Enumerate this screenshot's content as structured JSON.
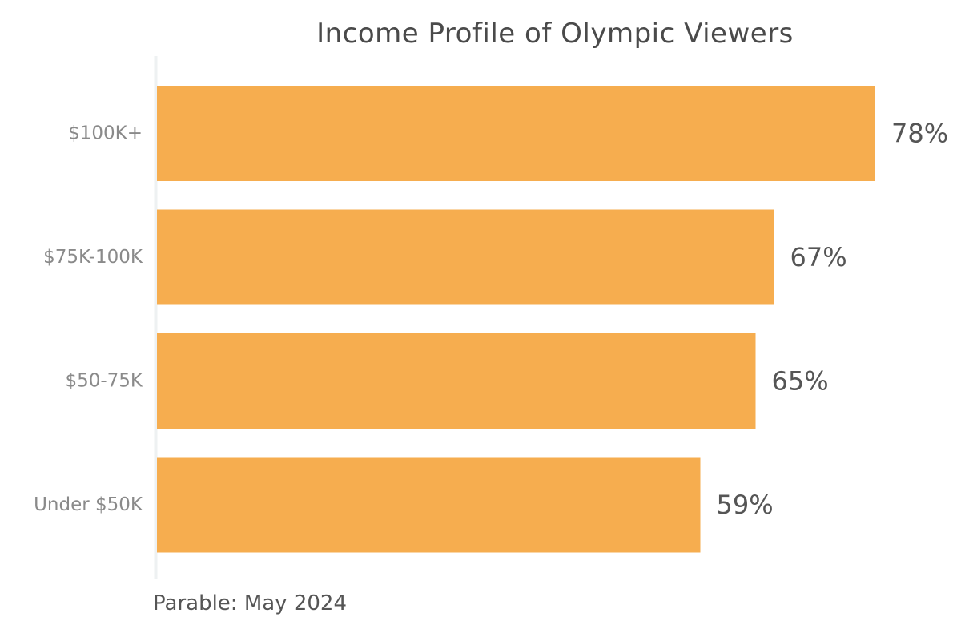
{
  "title": "Income Profile of Olympic Viewers",
  "source": "Parable: May 2024",
  "colors": {
    "bar": "#F6AD4F",
    "axis": "#EEF1F2"
  },
  "chart_data": {
    "type": "bar",
    "orientation": "horizontal",
    "title": "Income Profile of Olympic Viewers",
    "xlabel": "",
    "ylabel": "",
    "categories": [
      "$100K+",
      "$75K-100K",
      "$50-75K",
      "Under $50K"
    ],
    "values": [
      78,
      67,
      65,
      59
    ],
    "value_labels": [
      "78%",
      "67%",
      "65%",
      "59%"
    ],
    "xlim": [
      0,
      78
    ],
    "grid": false,
    "legend": "none"
  }
}
